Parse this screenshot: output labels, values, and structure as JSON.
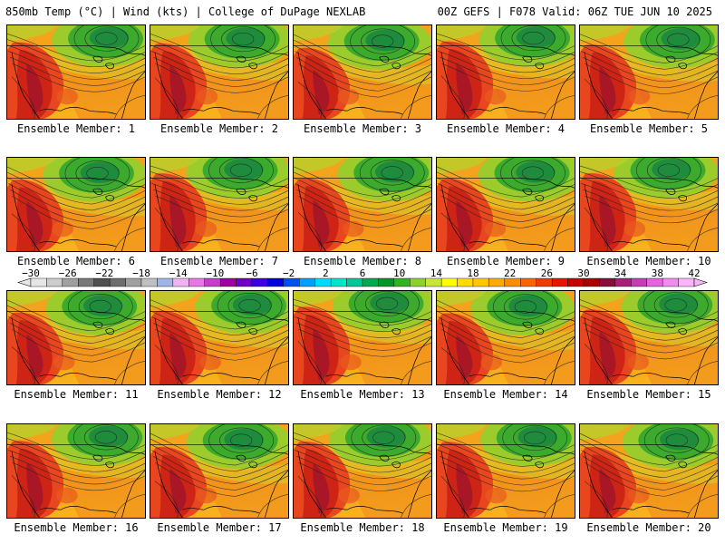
{
  "header": {
    "left": "850mb Temp (°C) | Wind (kts) | College of DuPage NEXLAB",
    "right": "00Z GEFS | F078 Valid: 06Z TUE JUN 10 2025"
  },
  "panels": [
    {
      "label": "Ensemble Member: 1"
    },
    {
      "label": "Ensemble Member: 2"
    },
    {
      "label": "Ensemble Member: 3"
    },
    {
      "label": "Ensemble Member: 4"
    },
    {
      "label": "Ensemble Member: 5"
    },
    {
      "label": "Ensemble Member: 6"
    },
    {
      "label": "Ensemble Member: 7"
    },
    {
      "label": "Ensemble Member: 8"
    },
    {
      "label": "Ensemble Member: 9"
    },
    {
      "label": "Ensemble Member: 10"
    },
    {
      "label": "Ensemble Member: 11"
    },
    {
      "label": "Ensemble Member: 12"
    },
    {
      "label": "Ensemble Member: 13"
    },
    {
      "label": "Ensemble Member: 14"
    },
    {
      "label": "Ensemble Member: 15"
    },
    {
      "label": "Ensemble Member: 16"
    },
    {
      "label": "Ensemble Member: 17"
    },
    {
      "label": "Ensemble Member: 18"
    },
    {
      "label": "Ensemble Member: 19"
    },
    {
      "label": "Ensemble Member: 20"
    }
  ],
  "colorbar": {
    "ticks": [
      "-30",
      "-26",
      "-22",
      "-18",
      "-14",
      "-10",
      "-6",
      "-2",
      "2",
      "6",
      "10",
      "14",
      "18",
      "22",
      "26",
      "30",
      "34",
      "38",
      "42"
    ],
    "colors": [
      "#e6e6e6",
      "#cccccc",
      "#a0a0a0",
      "#787878",
      "#505050",
      "#6e6e6e",
      "#a0a0a0",
      "#c0c0c0",
      "#a0b4e6",
      "#f0b4f0",
      "#e678e6",
      "#c83cc8",
      "#a000a0",
      "#6e00c8",
      "#3c00e6",
      "#0000dc",
      "#0050f0",
      "#00a0ff",
      "#00dcff",
      "#00e6c8",
      "#00c896",
      "#00aa50",
      "#009628",
      "#32b41e",
      "#8cd228",
      "#c8e632",
      "#ffff00",
      "#ffdc00",
      "#ffc800",
      "#ffaa00",
      "#ff8c00",
      "#ff6400",
      "#f03c00",
      "#e61400",
      "#c80000",
      "#aa0000",
      "#8c0a3c",
      "#aa1e78",
      "#c83cb4",
      "#e664dc",
      "#f08cf0",
      "#fab4fa"
    ]
  }
}
